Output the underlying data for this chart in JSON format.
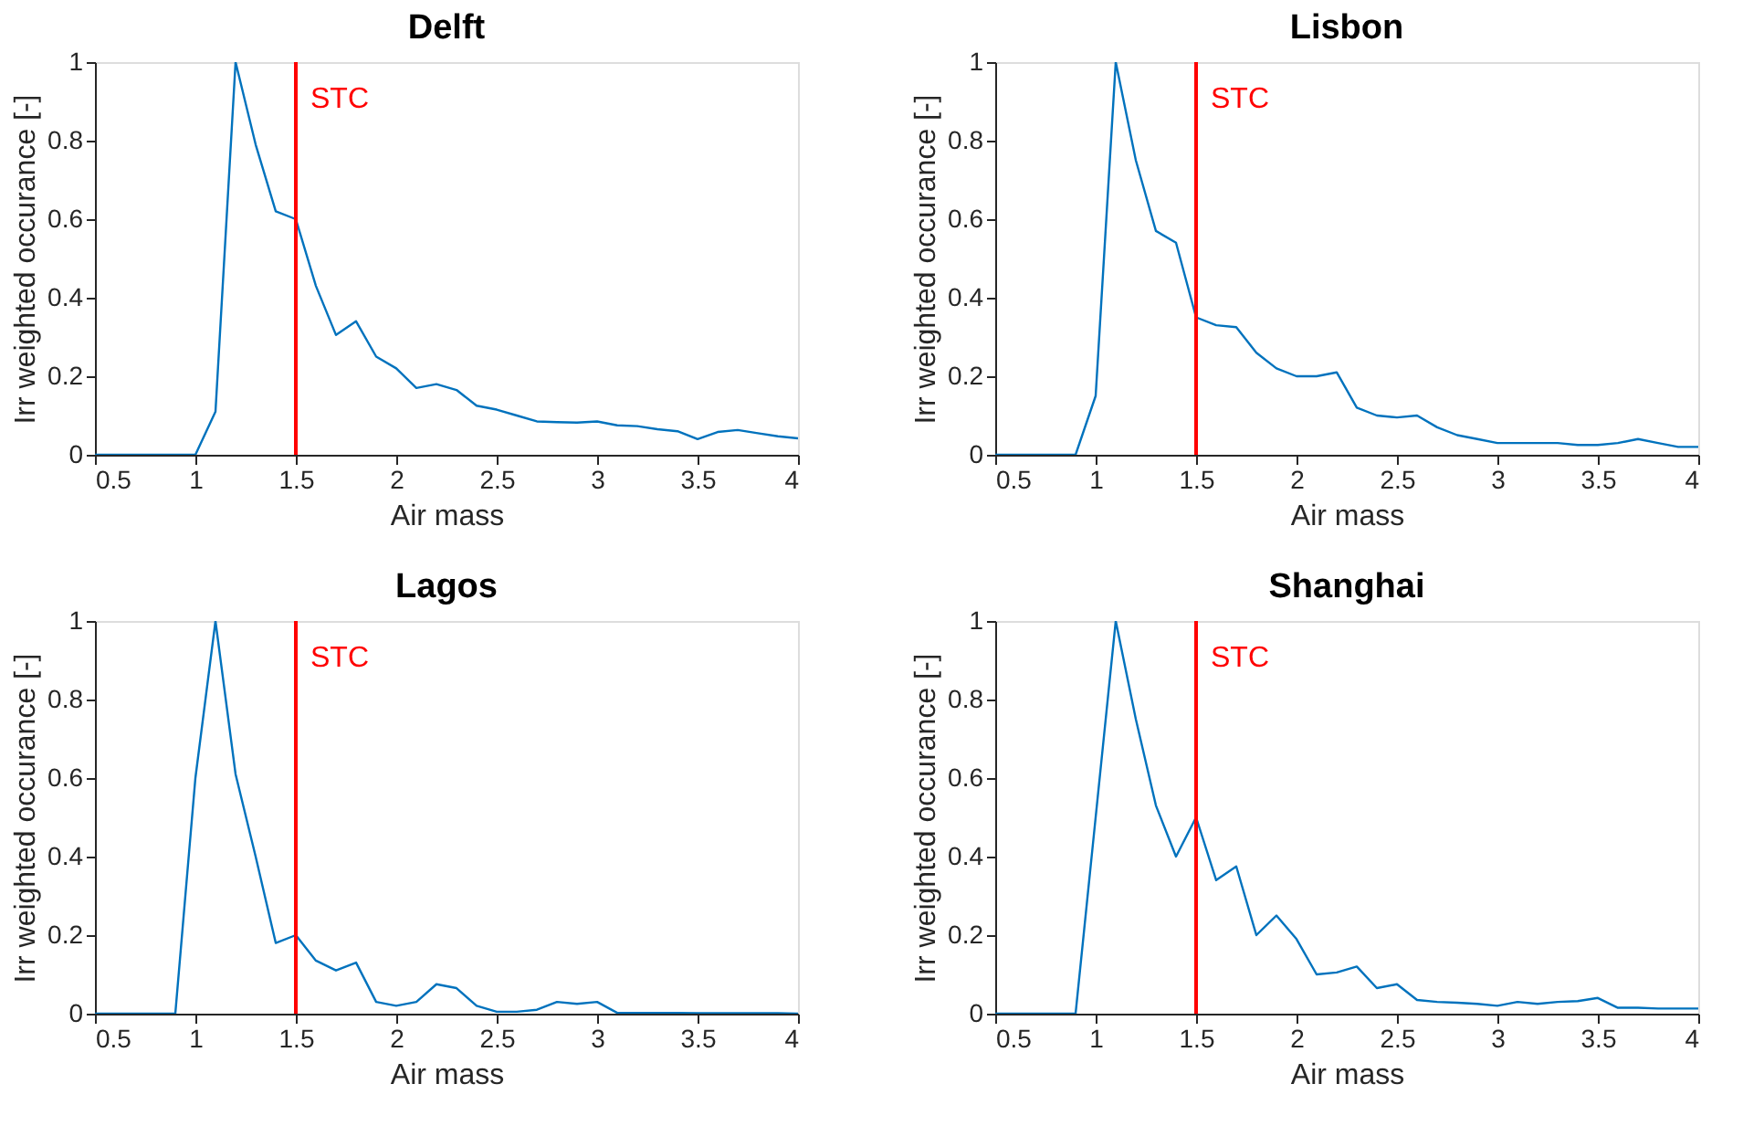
{
  "chart_data": [
    {
      "type": "line",
      "title": "Delft",
      "xlabel": "Air mass",
      "ylabel": "Irr weighted occurance [-]",
      "xlim": [
        0.5,
        4
      ],
      "ylim": [
        0,
        1
      ],
      "xticks": [
        0.5,
        1,
        1.5,
        2,
        2.5,
        3,
        3.5,
        4
      ],
      "yticks": [
        0,
        0.2,
        0.4,
        0.6,
        0.8,
        1
      ],
      "grid": false,
      "x": [
        0.5,
        0.6,
        0.7,
        0.8,
        0.9,
        1.0,
        1.1,
        1.2,
        1.3,
        1.4,
        1.5,
        1.6,
        1.7,
        1.8,
        1.9,
        2.0,
        2.1,
        2.2,
        2.3,
        2.4,
        2.5,
        2.6,
        2.7,
        2.8,
        2.9,
        3.0,
        3.1,
        3.2,
        3.3,
        3.4,
        3.5,
        3.6,
        3.7,
        3.8,
        3.9,
        4.0
      ],
      "series": [
        {
          "color": "#0072bd",
          "values": [
            0,
            0,
            0,
            0,
            0,
            0,
            0.11,
            1.0,
            0.79,
            0.62,
            0.6,
            0.43,
            0.305,
            0.34,
            0.25,
            0.22,
            0.17,
            0.18,
            0.165,
            0.125,
            0.115,
            0.1,
            0.085,
            0.083,
            0.082,
            0.085,
            0.075,
            0.073,
            0.065,
            0.06,
            0.04,
            0.058,
            0.063,
            0.055,
            0.047,
            0.042
          ]
        }
      ],
      "ref_lines": [
        {
          "axis": "x",
          "value": 1.5,
          "label": "STC",
          "color": "#ff0000"
        }
      ]
    },
    {
      "type": "line",
      "title": "Lisbon",
      "xlabel": "Air mass",
      "ylabel": "Irr weighted occurance [-]",
      "xlim": [
        0.5,
        4
      ],
      "ylim": [
        0,
        1
      ],
      "xticks": [
        0.5,
        1,
        1.5,
        2,
        2.5,
        3,
        3.5,
        4
      ],
      "yticks": [
        0,
        0.2,
        0.4,
        0.6,
        0.8,
        1
      ],
      "grid": false,
      "x": [
        0.5,
        0.6,
        0.7,
        0.8,
        0.9,
        1.0,
        1.1,
        1.2,
        1.3,
        1.4,
        1.5,
        1.6,
        1.7,
        1.8,
        1.9,
        2.0,
        2.1,
        2.2,
        2.3,
        2.4,
        2.5,
        2.6,
        2.7,
        2.8,
        2.9,
        3.0,
        3.1,
        3.2,
        3.3,
        3.4,
        3.5,
        3.6,
        3.7,
        3.8,
        3.9,
        4.0
      ],
      "series": [
        {
          "color": "#0072bd",
          "values": [
            0,
            0,
            0,
            0,
            0,
            0.15,
            1.0,
            0.75,
            0.57,
            0.54,
            0.35,
            0.33,
            0.325,
            0.26,
            0.22,
            0.2,
            0.2,
            0.21,
            0.12,
            0.1,
            0.095,
            0.1,
            0.07,
            0.05,
            0.04,
            0.03,
            0.03,
            0.03,
            0.03,
            0.025,
            0.025,
            0.03,
            0.04,
            0.03,
            0.02,
            0.02
          ]
        }
      ],
      "ref_lines": [
        {
          "axis": "x",
          "value": 1.5,
          "label": "STC",
          "color": "#ff0000"
        }
      ]
    },
    {
      "type": "line",
      "title": "Lagos",
      "xlabel": "Air mass",
      "ylabel": "Irr weighted occurance [-]",
      "xlim": [
        0.5,
        4
      ],
      "ylim": [
        0,
        1
      ],
      "xticks": [
        0.5,
        1,
        1.5,
        2,
        2.5,
        3,
        3.5,
        4
      ],
      "yticks": [
        0,
        0.2,
        0.4,
        0.6,
        0.8,
        1
      ],
      "grid": false,
      "x": [
        0.5,
        0.6,
        0.7,
        0.8,
        0.9,
        1.0,
        1.1,
        1.2,
        1.3,
        1.4,
        1.5,
        1.6,
        1.7,
        1.8,
        1.9,
        2.0,
        2.1,
        2.2,
        2.3,
        2.4,
        2.5,
        2.6,
        2.7,
        2.8,
        2.9,
        3.0,
        3.1,
        3.2,
        3.3,
        3.4,
        3.5,
        3.6,
        3.7,
        3.8,
        3.9,
        4.0
      ],
      "series": [
        {
          "color": "#0072bd",
          "values": [
            0,
            0,
            0,
            0,
            0,
            0.6,
            1.0,
            0.61,
            0.4,
            0.18,
            0.2,
            0.135,
            0.11,
            0.13,
            0.03,
            0.02,
            0.03,
            0.075,
            0.065,
            0.02,
            0.005,
            0.005,
            0.01,
            0.03,
            0.025,
            0.03,
            0.002,
            0.002,
            0.002,
            0.002,
            0.001,
            0.001,
            0.001,
            0.001,
            0.001,
            0
          ]
        }
      ],
      "ref_lines": [
        {
          "axis": "x",
          "value": 1.5,
          "label": "STC",
          "color": "#ff0000"
        }
      ]
    },
    {
      "type": "line",
      "title": "Shanghai",
      "xlabel": "Air mass",
      "ylabel": "Irr weighted occurance [-]",
      "xlim": [
        0.5,
        4
      ],
      "ylim": [
        0,
        1
      ],
      "xticks": [
        0.5,
        1,
        1.5,
        2,
        2.5,
        3,
        3.5,
        4
      ],
      "yticks": [
        0,
        0.2,
        0.4,
        0.6,
        0.8,
        1
      ],
      "grid": false,
      "x": [
        0.5,
        0.6,
        0.7,
        0.8,
        0.9,
        1.0,
        1.1,
        1.2,
        1.3,
        1.4,
        1.5,
        1.6,
        1.7,
        1.8,
        1.9,
        2.0,
        2.1,
        2.2,
        2.3,
        2.4,
        2.5,
        2.6,
        2.7,
        2.8,
        2.9,
        3.0,
        3.1,
        3.2,
        3.3,
        3.4,
        3.5,
        3.6,
        3.7,
        3.8,
        3.9,
        4.0
      ],
      "series": [
        {
          "color": "#0072bd",
          "values": [
            0,
            0,
            0,
            0,
            0,
            0.5,
            1.0,
            0.75,
            0.53,
            0.4,
            0.5,
            0.34,
            0.375,
            0.2,
            0.25,
            0.19,
            0.1,
            0.105,
            0.12,
            0.065,
            0.075,
            0.035,
            0.03,
            0.028,
            0.025,
            0.02,
            0.03,
            0.025,
            0.03,
            0.032,
            0.04,
            0.015,
            0.015,
            0.013,
            0.013,
            0.013
          ]
        }
      ],
      "ref_lines": [
        {
          "axis": "x",
          "value": 1.5,
          "label": "STC",
          "color": "#ff0000"
        }
      ]
    }
  ]
}
